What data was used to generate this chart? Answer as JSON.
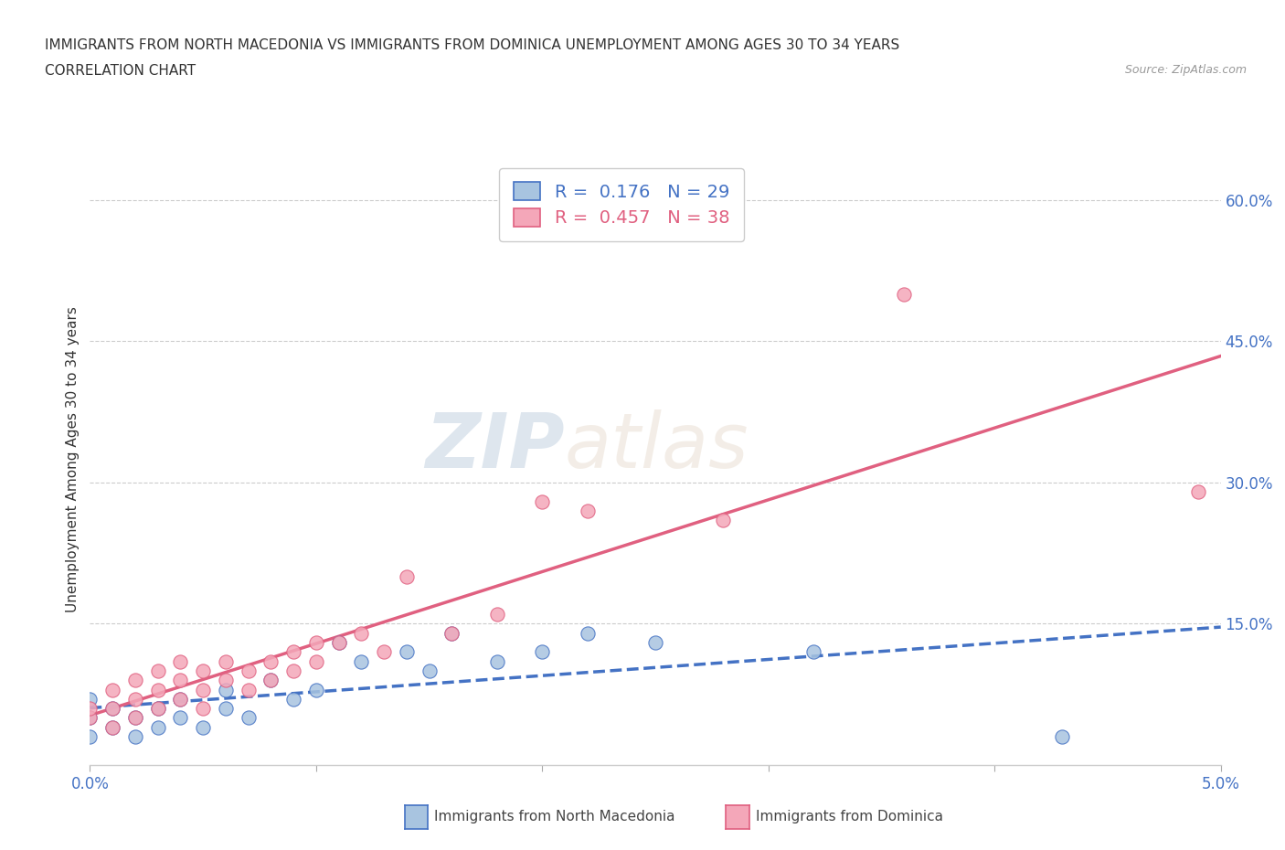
{
  "title_line1": "IMMIGRANTS FROM NORTH MACEDONIA VS IMMIGRANTS FROM DOMINICA UNEMPLOYMENT AMONG AGES 30 TO 34 YEARS",
  "title_line2": "CORRELATION CHART",
  "source_text": "Source: ZipAtlas.com",
  "ylabel": "Unemployment Among Ages 30 to 34 years",
  "xlim": [
    0.0,
    0.05
  ],
  "ylim": [
    0.0,
    0.65
  ],
  "xticks": [
    0.0,
    0.01,
    0.02,
    0.03,
    0.04,
    0.05
  ],
  "xticklabels": [
    "0.0%",
    "",
    "",
    "",
    "",
    "5.0%"
  ],
  "ytick_positions": [
    0.15,
    0.3,
    0.45,
    0.6
  ],
  "ytick_labels": [
    "15.0%",
    "30.0%",
    "45.0%",
    "60.0%"
  ],
  "color_blue": "#a8c4e0",
  "color_pink": "#f4a7b9",
  "color_blue_dark": "#4472c4",
  "color_pink_dark": "#e06080",
  "R_blue": 0.176,
  "N_blue": 29,
  "R_pink": 0.457,
  "N_pink": 38,
  "nm_x": [
    0.0,
    0.0,
    0.0,
    0.001,
    0.001,
    0.002,
    0.002,
    0.003,
    0.003,
    0.004,
    0.004,
    0.005,
    0.006,
    0.006,
    0.007,
    0.008,
    0.009,
    0.01,
    0.011,
    0.012,
    0.014,
    0.015,
    0.016,
    0.018,
    0.02,
    0.022,
    0.025,
    0.032,
    0.043
  ],
  "nm_y": [
    0.05,
    0.07,
    0.03,
    0.04,
    0.06,
    0.05,
    0.03,
    0.06,
    0.04,
    0.07,
    0.05,
    0.04,
    0.06,
    0.08,
    0.05,
    0.09,
    0.07,
    0.08,
    0.13,
    0.11,
    0.12,
    0.1,
    0.14,
    0.11,
    0.12,
    0.14,
    0.13,
    0.12,
    0.03
  ],
  "dom_x": [
    0.0,
    0.0,
    0.001,
    0.001,
    0.001,
    0.002,
    0.002,
    0.002,
    0.003,
    0.003,
    0.003,
    0.004,
    0.004,
    0.004,
    0.005,
    0.005,
    0.005,
    0.006,
    0.006,
    0.007,
    0.007,
    0.008,
    0.008,
    0.009,
    0.009,
    0.01,
    0.01,
    0.011,
    0.012,
    0.013,
    0.014,
    0.016,
    0.018,
    0.02,
    0.022,
    0.028,
    0.036,
    0.049
  ],
  "dom_y": [
    0.05,
    0.06,
    0.04,
    0.06,
    0.08,
    0.05,
    0.07,
    0.09,
    0.06,
    0.08,
    0.1,
    0.07,
    0.09,
    0.11,
    0.06,
    0.08,
    0.1,
    0.09,
    0.11,
    0.08,
    0.1,
    0.09,
    0.11,
    0.1,
    0.12,
    0.11,
    0.13,
    0.13,
    0.14,
    0.12,
    0.2,
    0.14,
    0.16,
    0.28,
    0.27,
    0.26,
    0.5,
    0.29
  ],
  "watermark_text1": "ZIP",
  "watermark_text2": "atlas",
  "background_color": "#ffffff",
  "grid_color": "#cccccc",
  "legend_bottom_blue": "Immigrants from North Macedonia",
  "legend_bottom_pink": "Immigrants from Dominica"
}
